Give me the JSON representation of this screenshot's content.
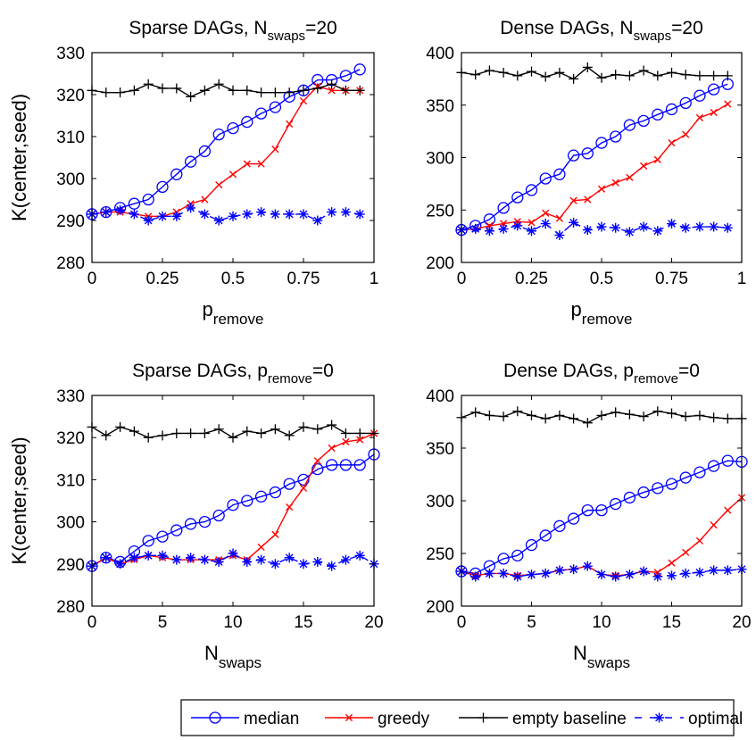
{
  "chart_data": [
    {
      "type": "line",
      "title_main": "Sparse DAGs, N",
      "title_sub": "swaps",
      "title_tail": "=20",
      "xlabel_main": "p",
      "xlabel_sub": "remove",
      "ylabel": "K(center,seed)",
      "xlim": [
        0,
        1
      ],
      "ylim": [
        280,
        330
      ],
      "xticks": [
        0,
        0.25,
        0.5,
        0.75,
        1
      ],
      "xtick_labels": [
        "0",
        "0.25",
        "0.5",
        "0.75",
        "1"
      ],
      "yticks": [
        280,
        290,
        300,
        310,
        320,
        330
      ],
      "ytick_labels": [
        "280",
        "290",
        "300",
        "310",
        "320",
        "330"
      ],
      "x": [
        0,
        0.05,
        0.1,
        0.15,
        0.2,
        0.25,
        0.3,
        0.35,
        0.4,
        0.45,
        0.5,
        0.55,
        0.6,
        0.65,
        0.7,
        0.75,
        0.8,
        0.85,
        0.9,
        0.95
      ],
      "series": [
        {
          "key": "median",
          "values": [
            291.5,
            292,
            293,
            294,
            295,
            298,
            301,
            304,
            306.5,
            310.5,
            312,
            313.5,
            315.5,
            317,
            319.5,
            321,
            323.5,
            323.5,
            324.5,
            326
          ]
        },
        {
          "key": "greedy",
          "values": [
            291.5,
            292,
            292,
            291.5,
            291,
            291,
            292,
            294,
            295,
            298.5,
            301,
            303.5,
            303.5,
            307,
            313,
            318.5,
            322,
            321,
            321,
            321
          ]
        },
        {
          "key": "baseline",
          "values": [
            321,
            320.5,
            320.5,
            321,
            322.5,
            321.5,
            321.5,
            319.5,
            321,
            322.5,
            321,
            321,
            320.5,
            320.5,
            320.5,
            321,
            321.5,
            322.5,
            321,
            321
          ]
        },
        {
          "key": "optimal",
          "values": [
            291.5,
            292,
            292.5,
            291.5,
            290,
            291,
            291,
            293,
            291.5,
            290,
            291,
            291.5,
            292,
            291.5,
            291.5,
            291.5,
            290,
            292,
            292,
            291.5
          ]
        }
      ]
    },
    {
      "type": "line",
      "title_main": "Dense DAGs, N",
      "title_sub": "swaps",
      "title_tail": "=20",
      "xlabel_main": "p",
      "xlabel_sub": "remove",
      "ylabel": "",
      "xlim": [
        0,
        1
      ],
      "ylim": [
        200,
        400
      ],
      "xticks": [
        0,
        0.25,
        0.5,
        0.75,
        1
      ],
      "xtick_labels": [
        "0",
        "0.25",
        "0.5",
        "0.75",
        "1"
      ],
      "yticks": [
        200,
        250,
        300,
        350,
        400
      ],
      "ytick_labels": [
        "200",
        "250",
        "300",
        "350",
        "400"
      ],
      "x": [
        0,
        0.05,
        0.1,
        0.15,
        0.2,
        0.25,
        0.3,
        0.35,
        0.4,
        0.45,
        0.5,
        0.55,
        0.6,
        0.65,
        0.7,
        0.75,
        0.8,
        0.85,
        0.9,
        0.95
      ],
      "series": [
        {
          "key": "median",
          "values": [
            231,
            235,
            241,
            252,
            262,
            269,
            280,
            284,
            302,
            304,
            314,
            320,
            331,
            335,
            341,
            346,
            352,
            359,
            365,
            370
          ]
        },
        {
          "key": "greedy",
          "values": [
            231,
            232,
            235,
            237,
            239,
            238,
            247,
            242,
            259,
            260,
            270,
            276,
            281,
            292,
            298,
            314,
            322,
            338,
            343,
            351
          ]
        },
        {
          "key": "baseline",
          "values": [
            381,
            379,
            383,
            381,
            378,
            382,
            377,
            381,
            375,
            386,
            376,
            379,
            378,
            383,
            378,
            381,
            379,
            378,
            378,
            378
          ]
        },
        {
          "key": "optimal",
          "values": [
            231,
            232,
            230,
            232,
            235,
            230,
            237,
            226,
            238,
            231,
            234,
            233,
            229,
            234,
            230,
            237,
            233,
            234,
            234,
            233
          ]
        }
      ]
    },
    {
      "type": "line",
      "title_main": "Sparse DAGs, p",
      "title_sub": "remove",
      "title_tail": "=0",
      "xlabel_main": "N",
      "xlabel_sub": "swaps",
      "ylabel": "K(center,seed)",
      "xlim": [
        0,
        20
      ],
      "ylim": [
        280,
        330
      ],
      "xticks": [
        0,
        5,
        10,
        15,
        20
      ],
      "xtick_labels": [
        "0",
        "5",
        "10",
        "15",
        "20"
      ],
      "yticks": [
        280,
        290,
        300,
        310,
        320,
        330
      ],
      "ytick_labels": [
        "280",
        "290",
        "300",
        "310",
        "320",
        "330"
      ],
      "x": [
        0,
        1,
        2,
        3,
        4,
        5,
        6,
        7,
        8,
        9,
        10,
        11,
        12,
        13,
        14,
        15,
        16,
        17,
        18,
        19,
        20
      ],
      "series": [
        {
          "key": "median",
          "values": [
            289.5,
            291.5,
            290.5,
            293,
            295.5,
            296.5,
            298,
            299.5,
            300,
            301.5,
            304,
            305,
            306,
            307,
            309,
            310,
            312.5,
            313.5,
            313.5,
            313.5,
            316
          ]
        },
        {
          "key": "greedy",
          "values": [
            289.5,
            291.5,
            290,
            291,
            292,
            291.5,
            291,
            291,
            291,
            291,
            292,
            291,
            294,
            297,
            303.5,
            308,
            314.5,
            317.5,
            319,
            319.5,
            321
          ]
        },
        {
          "key": "baseline",
          "values": [
            322.5,
            320.5,
            322.5,
            321.5,
            320,
            320.5,
            321,
            321,
            321,
            322,
            320,
            321.5,
            321,
            322,
            320.5,
            322.5,
            322,
            323,
            321,
            321,
            321
          ]
        },
        {
          "key": "optimal",
          "values": [
            289.5,
            291.5,
            290,
            291.5,
            292,
            292,
            291,
            291.5,
            291,
            290.5,
            292.5,
            290.5,
            291,
            290,
            291.5,
            290,
            290.5,
            289.5,
            291,
            292,
            290
          ]
        }
      ]
    },
    {
      "type": "line",
      "title_main": "Dense DAGs, p",
      "title_sub": "remove",
      "title_tail": "=0",
      "xlabel_main": "N",
      "xlabel_sub": "swaps",
      "ylabel": "",
      "xlim": [
        0,
        20
      ],
      "ylim": [
        200,
        400
      ],
      "xticks": [
        0,
        5,
        10,
        15,
        20
      ],
      "xtick_labels": [
        "0",
        "5",
        "10",
        "15",
        "20"
      ],
      "yticks": [
        200,
        250,
        300,
        350,
        400
      ],
      "ytick_labels": [
        "200",
        "250",
        "300",
        "350",
        "400"
      ],
      "x": [
        0,
        1,
        2,
        3,
        4,
        5,
        6,
        7,
        8,
        9,
        10,
        11,
        12,
        13,
        14,
        15,
        16,
        17,
        18,
        19,
        20
      ],
      "series": [
        {
          "key": "median",
          "values": [
            233,
            231,
            238,
            245,
            248,
            258,
            267,
            276,
            283,
            291,
            291,
            297,
            303,
            308,
            312,
            316,
            322,
            327,
            333,
            338,
            337
          ]
        },
        {
          "key": "greedy",
          "values": [
            233,
            229,
            231,
            231,
            229,
            230,
            231,
            234,
            235,
            238,
            230,
            229,
            230,
            233,
            232,
            241,
            251,
            262,
            277,
            291,
            303
          ]
        },
        {
          "key": "baseline",
          "values": [
            379,
            384,
            381,
            380,
            385,
            381,
            378,
            381,
            378,
            374,
            381,
            384,
            382,
            380,
            385,
            383,
            380,
            381,
            379,
            378,
            378
          ]
        },
        {
          "key": "optimal",
          "values": [
            233,
            228,
            231,
            231,
            228,
            230,
            231,
            234,
            235,
            238,
            230,
            228,
            230,
            233,
            228,
            229,
            231,
            232,
            234,
            234,
            235
          ]
        }
      ]
    }
  ],
  "legend": [
    {
      "key": "median",
      "label": "median",
      "color": "#0000ff",
      "marker": "circle",
      "dash": "solid"
    },
    {
      "key": "greedy",
      "label": "greedy",
      "color": "#ff0000",
      "marker": "x",
      "dash": "solid"
    },
    {
      "key": "baseline",
      "label": "empty baseline",
      "color": "#000000",
      "marker": "plus",
      "dash": "solid"
    },
    {
      "key": "optimal",
      "label": "optimal",
      "color": "#0000ff",
      "marker": "star",
      "dash": "dashed"
    }
  ]
}
